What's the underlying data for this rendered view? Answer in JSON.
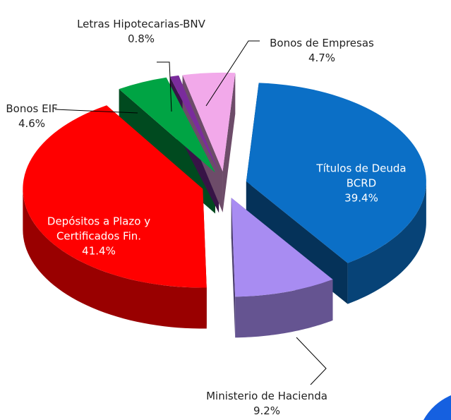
{
  "chart_data": {
    "type": "pie",
    "categories": [
      "Títulos de Deuda BCRD",
      "Ministerio de Hacienda",
      "Depósitos a Plazo y Certificados Fin.",
      "Bonos EIF",
      "Letras Hipotecarias-BNV",
      "Bonos de Empresas"
    ],
    "values": [
      39.4,
      9.2,
      41.4,
      4.6,
      0.8,
      4.7
    ],
    "value_labels": [
      "39.4%",
      "9.2%",
      "41.4%",
      "4.6%",
      "0.8%",
      "4.7%"
    ],
    "colors": [
      "#0b6fc6",
      "#a88cf2",
      "#ff0000",
      "#00a444",
      "#7a2c9c",
      "#f2a9ea"
    ]
  }
}
